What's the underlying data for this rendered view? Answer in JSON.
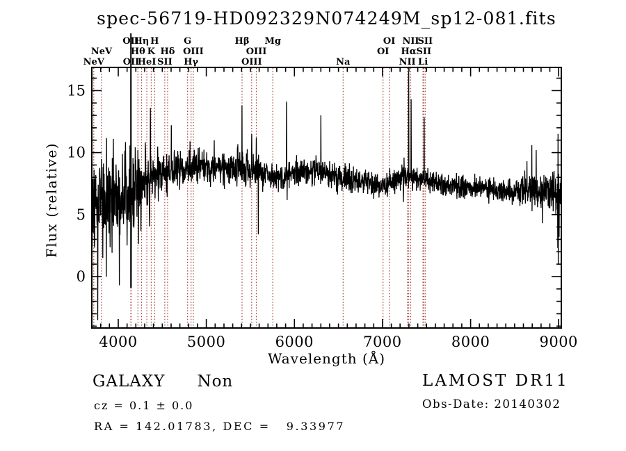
{
  "chart_data": {
    "type": "line",
    "title": "spec-56719-HD092329N074249M_sp12-081.fits",
    "xlabel": "Wavelength (Å)",
    "ylabel": "Flux (relative)",
    "xlim": [
      3700,
      9030
    ],
    "ylim": [
      -4.15,
      16.87
    ],
    "x_ticks": [
      4000,
      5000,
      6000,
      7000,
      8000,
      9000
    ],
    "x_minor_step": 100,
    "y_ticks": [
      0,
      5,
      10,
      15
    ],
    "y_minor_step": 1,
    "grid": false,
    "legend": null,
    "trace_color": "#000000",
    "marker_color": "#a03a2e",
    "plot_redshift": 0.112,
    "line_markers": [
      {
        "label": "NeV",
        "rest": 3347.0,
        "row": 3
      },
      {
        "label": "NeV",
        "rest": 3427.0,
        "row": 2
      },
      {
        "label": "OII",
        "rest": 3726.0,
        "row": 1
      },
      {
        "label": "OII",
        "rest": 3728.8,
        "row": 3
      },
      {
        "label": "Hθ",
        "rest": 3798.0,
        "row": 2
      },
      {
        "label": "Hη",
        "rest": 3835.4,
        "row": 1
      },
      {
        "label": "HeI",
        "rest": 3889.0,
        "row": 3
      },
      {
        "label": "K",
        "rest": 3933.7,
        "row": 2
      },
      {
        "label": "H",
        "rest": 3968.5,
        "row": 1
      },
      {
        "label": "SII",
        "rest": 4072.0,
        "row": 3
      },
      {
        "label": "Hδ",
        "rest": 4101.7,
        "row": 2
      },
      {
        "label": "G",
        "rest": 4305.0,
        "row": 1
      },
      {
        "label": "Hγ",
        "rest": 4340.5,
        "row": 3
      },
      {
        "label": "OIII",
        "rest": 4363.2,
        "row": 2
      },
      {
        "label": "Hβ",
        "rest": 4861.3,
        "row": 1
      },
      {
        "label": "OIII",
        "rest": 4959.0,
        "row": 3
      },
      {
        "label": "OIII",
        "rest": 5006.8,
        "row": 2
      },
      {
        "label": "Mg",
        "rest": 5175.3,
        "row": 1
      },
      {
        "label": "Na",
        "rest": 5893.0,
        "row": 3
      },
      {
        "label": "OI",
        "rest": 6300.3,
        "row": 2
      },
      {
        "label": "OI",
        "rest": 6363.8,
        "row": 1
      },
      {
        "label": "NII",
        "rest": 6548.0,
        "row": 3
      },
      {
        "label": "Hα",
        "rest": 6562.8,
        "row": 2
      },
      {
        "label": "NII",
        "rest": 6583.4,
        "row": 1
      },
      {
        "label": "Li",
        "rest": 6707.9,
        "row": 3
      },
      {
        "label": "SII",
        "rest": 6716.4,
        "row": 2
      },
      {
        "label": "SII",
        "rest": 6730.8,
        "row": 1
      }
    ],
    "continuum_points": [
      [
        3700,
        6.0
      ],
      [
        3800,
        6.1
      ],
      [
        3900,
        6.3
      ],
      [
        4000,
        6.5
      ],
      [
        4100,
        6.6
      ],
      [
        4200,
        6.9
      ],
      [
        4300,
        7.3
      ],
      [
        4400,
        7.9
      ],
      [
        4500,
        8.2
      ],
      [
        4700,
        8.6
      ],
      [
        4900,
        8.8
      ],
      [
        5100,
        8.85
      ],
      [
        5300,
        8.8
      ],
      [
        5500,
        8.6
      ],
      [
        5700,
        8.3
      ],
      [
        5800,
        8.1
      ],
      [
        5900,
        8.2
      ],
      [
        6100,
        8.5
      ],
      [
        6300,
        8.45
      ],
      [
        6500,
        8.1
      ],
      [
        6700,
        7.8
      ],
      [
        6900,
        7.45
      ],
      [
        7050,
        7.3
      ],
      [
        7200,
        7.9
      ],
      [
        7330,
        7.9
      ],
      [
        7450,
        7.8
      ],
      [
        7600,
        7.5
      ],
      [
        7800,
        7.3
      ],
      [
        8000,
        7.2
      ],
      [
        8200,
        7.1
      ],
      [
        8400,
        6.9
      ],
      [
        8600,
        7.0
      ],
      [
        8800,
        6.9
      ],
      [
        9030,
        6.8
      ]
    ],
    "noise_amplitude_points": [
      [
        3700,
        2.3
      ],
      [
        3850,
        2.1
      ],
      [
        4000,
        1.9
      ],
      [
        4200,
        1.4
      ],
      [
        4400,
        0.95
      ],
      [
        4700,
        0.7
      ],
      [
        5000,
        0.62
      ],
      [
        5500,
        0.6
      ],
      [
        6000,
        0.55
      ],
      [
        6500,
        0.5
      ],
      [
        7000,
        0.5
      ],
      [
        7600,
        0.45
      ],
      [
        8200,
        0.45
      ],
      [
        8600,
        0.55
      ],
      [
        8900,
        0.75
      ],
      [
        9030,
        0.8
      ]
    ],
    "spike_points": [
      [
        4144,
        16.85
      ],
      [
        4146.5,
        -0.9
      ],
      [
        4366,
        13.6
      ],
      [
        4603,
        12.2
      ],
      [
        5090,
        11.0
      ],
      [
        5405,
        13.8
      ],
      [
        5514,
        11.5
      ],
      [
        5568,
        11.2
      ],
      [
        5589,
        3.4
      ],
      [
        5910,
        14.1
      ],
      [
        6300,
        13.0
      ],
      [
        7245,
        9.6
      ],
      [
        7298,
        16.5
      ],
      [
        7325,
        14.3
      ],
      [
        7340,
        6.9
      ],
      [
        7472,
        12.85
      ],
      [
        8641,
        9.3
      ],
      [
        8696,
        10.6
      ],
      [
        8745,
        10.2
      ],
      [
        8815,
        4.3
      ],
      [
        8990,
        2.3
      ],
      [
        8992.5,
        11.5
      ],
      [
        8995,
        1.0
      ],
      [
        9000,
        8.3
      ],
      [
        9005,
        3.2
      ],
      [
        9010,
        7.0
      ],
      [
        9015,
        6.2
      ],
      [
        9022,
        6.6
      ]
    ],
    "clipped_spike_wavelengths": [
      4144
    ],
    "noise_seed": 20140302
  },
  "footer": {
    "classification": "GALAXY",
    "subclass": "Non",
    "cz_text": "cz = 0.1 ± 0.0",
    "ra_dec_text": "RA = 142.01783, DEC =   9.33977",
    "survey_text": "LAMOST DR11",
    "obs_date_text": "Obs-Date: 20140302"
  }
}
